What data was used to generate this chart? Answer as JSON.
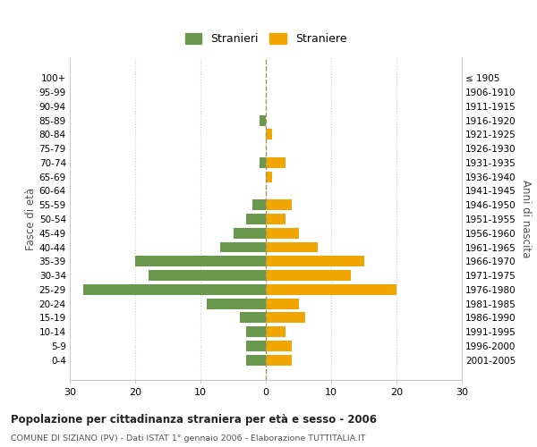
{
  "age_groups": [
    "100+",
    "95-99",
    "90-94",
    "85-89",
    "80-84",
    "75-79",
    "70-74",
    "65-69",
    "60-64",
    "55-59",
    "50-54",
    "45-49",
    "40-44",
    "35-39",
    "30-34",
    "25-29",
    "20-24",
    "15-19",
    "10-14",
    "5-9",
    "0-4"
  ],
  "birth_years": [
    "≤ 1905",
    "1906-1910",
    "1911-1915",
    "1916-1920",
    "1921-1925",
    "1926-1930",
    "1931-1935",
    "1936-1940",
    "1941-1945",
    "1946-1950",
    "1951-1955",
    "1956-1960",
    "1961-1965",
    "1966-1970",
    "1971-1975",
    "1976-1980",
    "1981-1985",
    "1986-1990",
    "1991-1995",
    "1996-2000",
    "2001-2005"
  ],
  "males": [
    0,
    0,
    0,
    1,
    0,
    0,
    1,
    0,
    0,
    2,
    3,
    5,
    7,
    20,
    18,
    28,
    9,
    4,
    3,
    3,
    3
  ],
  "females": [
    0,
    0,
    0,
    0,
    1,
    0,
    3,
    1,
    0,
    4,
    3,
    5,
    8,
    15,
    13,
    20,
    5,
    6,
    3,
    4,
    4
  ],
  "male_color": "#6a994e",
  "female_color": "#f0a500",
  "background_color": "#ffffff",
  "grid_color": "#cccccc",
  "dashed_line_color": "#999966",
  "title": "Popolazione per cittadinanza straniera per età e sesso - 2006",
  "subtitle": "COMUNE DI SIZIANO (PV) - Dati ISTAT 1° gennaio 2006 - Elaborazione TUTTITALIA.IT",
  "y_left_label": "Fasce di età",
  "y_right_label": "Anni di nascita",
  "legend_male": "Stranieri",
  "legend_female": "Straniere",
  "xlim": 30
}
